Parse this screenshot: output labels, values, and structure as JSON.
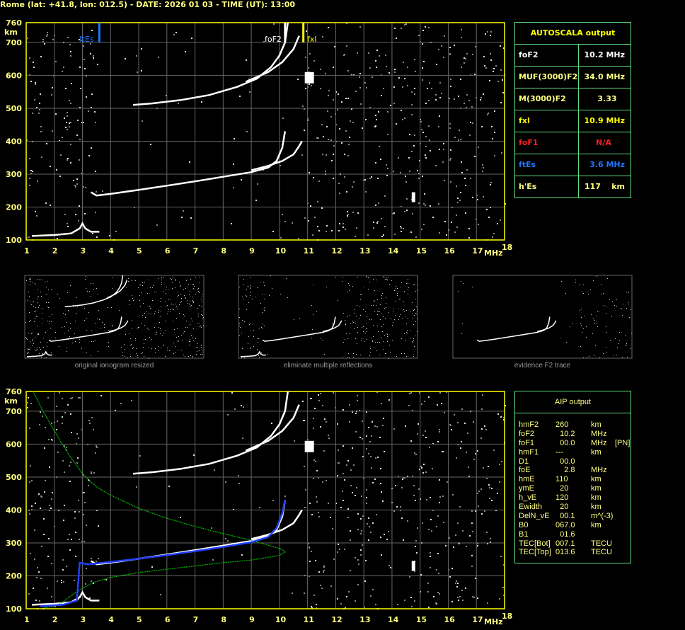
{
  "title": "Rome (lat: +41.8, lon: 012.5) - DATE: 2026 01 03 - TIME (UT): 13:00",
  "colors": {
    "text": "#ffff80",
    "grid": "#666666",
    "frame": "#ffff00",
    "table_border": "#60e080",
    "ftEs": "#1e78ff",
    "foF1": "#ff2020",
    "trace": "#ffffff",
    "profile": "#00d000",
    "aip_trace": "#2040ff"
  },
  "axis": {
    "y_unit": "km",
    "x_unit": "MHz",
    "y_ticks": [
      "760",
      "700",
      "600",
      "500",
      "400",
      "300",
      "200",
      "100"
    ],
    "x_ticks": [
      "1",
      "2",
      "3",
      "4",
      "5",
      "6",
      "7",
      "8",
      "9",
      "10",
      "11",
      "12",
      "13",
      "14",
      "15",
      "16",
      "17",
      "18"
    ]
  },
  "markers": {
    "ftEs": "ftEs",
    "foF2": "foF2",
    "fxI": "fxI"
  },
  "autoscala": {
    "title": "AUTOSCALA output",
    "rows": [
      {
        "key": "foF2",
        "value": "10.2 MHz",
        "color": "#ffffff"
      },
      {
        "key": "MUF(3000)F2",
        "value": "34.0 MHz",
        "color": "#ffff80"
      },
      {
        "key": "M(3000)F2",
        "value": "3.33   ",
        "color": "#ffff80"
      },
      {
        "key": "fxI",
        "value": "10.9 MHz",
        "color": "#ffff00"
      },
      {
        "key": "foF1",
        "value": "N/A     ",
        "color": "#ff2020"
      },
      {
        "key": "ftEs",
        "value": "3.6 MHz",
        "color": "#1e78ff"
      },
      {
        "key": "h'Es",
        "value": "117    km",
        "color": "#ffff80"
      }
    ]
  },
  "thumbnails": [
    {
      "caption": "original ionogram resized"
    },
    {
      "caption": "eliminate multiple reflections"
    },
    {
      "caption": "evidence F2 trace"
    }
  ],
  "aip": {
    "title": "AIP output",
    "rows": [
      [
        "hmF2",
        "260",
        "km",
        ""
      ],
      [
        "foF2",
        "  10.2",
        "MHz",
        ""
      ],
      [
        "foF1",
        "  00.0",
        "MHz",
        "[PN]"
      ],
      [
        "hmF1",
        "---",
        "km",
        ""
      ],
      [
        "D1",
        "  00.0",
        "",
        ""
      ],
      [
        "foE",
        "    2.8",
        "MHz",
        ""
      ],
      [
        "hmE",
        "110",
        "km",
        ""
      ],
      [
        "ymE",
        "  20",
        "km",
        ""
      ],
      [
        "h_vE",
        "120",
        "km",
        ""
      ],
      [
        "Ewidth",
        "  20",
        "km",
        ""
      ],
      [
        "DelN_vE",
        "  00.1",
        "m^(-3)",
        ""
      ],
      [
        "B0",
        "067.0",
        "km",
        ""
      ],
      [
        "B1",
        "  01.6",
        "",
        ""
      ],
      [
        "TEC[Bot]",
        "007.1",
        "TECU",
        ""
      ],
      [
        "TEC[Top]",
        "013.6",
        "TECU",
        ""
      ]
    ]
  },
  "chart_data": [
    {
      "type": "scatter",
      "name_ref": "ionogram",
      "xlabel": "MHz",
      "ylabel": "km",
      "xlim": [
        1,
        18
      ],
      "ylim": [
        100,
        760
      ],
      "grid": true,
      "markers": {
        "ftEs_MHz": 3.6,
        "foF2_MHz": 10.2,
        "fxI_MHz": 10.9
      },
      "traces": {
        "Es": [
          [
            1.2,
            112
          ],
          [
            2,
            115
          ],
          [
            2.6,
            120
          ],
          [
            2.9,
            135
          ],
          [
            3.0,
            150
          ],
          [
            3.1,
            135
          ],
          [
            3.3,
            125
          ],
          [
            3.6,
            125
          ]
        ],
        "F2_o": [
          [
            3.3,
            245
          ],
          [
            3.5,
            235
          ],
          [
            4,
            240
          ],
          [
            5,
            252
          ],
          [
            6,
            265
          ],
          [
            7,
            278
          ],
          [
            8,
            292
          ],
          [
            9,
            306
          ],
          [
            9.6,
            320
          ],
          [
            9.9,
            340
          ],
          [
            10.1,
            380
          ],
          [
            10.2,
            430
          ]
        ],
        "F2_x": [
          [
            9,
            312
          ],
          [
            9.6,
            325
          ],
          [
            10.1,
            340
          ],
          [
            10.5,
            360
          ],
          [
            10.7,
            385
          ],
          [
            10.8,
            400
          ]
        ],
        "F2_2hop": [
          [
            4.8,
            510
          ],
          [
            5.5,
            515
          ],
          [
            6.5,
            525
          ],
          [
            7.5,
            540
          ],
          [
            8.5,
            565
          ],
          [
            9.2,
            590
          ],
          [
            9.7,
            625
          ],
          [
            10.0,
            660
          ],
          [
            10.2,
            700
          ],
          [
            10.3,
            760
          ]
        ],
        "F2_2hop_x": [
          [
            8.8,
            580
          ],
          [
            9.6,
            610
          ],
          [
            10.1,
            640
          ],
          [
            10.5,
            680
          ],
          [
            10.7,
            720
          ]
        ]
      }
    },
    {
      "type": "line",
      "name_ref": "aip",
      "xlabel": "MHz",
      "ylabel": "km",
      "xlim": [
        1,
        18
      ],
      "ylim": [
        100,
        760
      ],
      "grid": true,
      "profile": [
        [
          1.25,
          760
        ],
        [
          1.6,
          700
        ],
        [
          2,
          640
        ],
        [
          2.5,
          570
        ],
        [
          3,
          510
        ],
        [
          3.5,
          470
        ],
        [
          4,
          445
        ],
        [
          5,
          405
        ],
        [
          6,
          375
        ],
        [
          7,
          350
        ],
        [
          8,
          328
        ],
        [
          9,
          308
        ],
        [
          9.6,
          293
        ],
        [
          10.1,
          280
        ],
        [
          10.2,
          272
        ],
        [
          10,
          262
        ],
        [
          9,
          248
        ],
        [
          8,
          240
        ],
        [
          7,
          230
        ],
        [
          6,
          220
        ],
        [
          5,
          210
        ],
        [
          4,
          195
        ],
        [
          3.4,
          180
        ],
        [
          3,
          162
        ],
        [
          2.6,
          140
        ],
        [
          2.3,
          120
        ],
        [
          2,
          108
        ],
        [
          1.6,
          102
        ]
      ],
      "fit": [
        [
          1.5,
          108
        ],
        [
          2.3,
          112
        ],
        [
          2.8,
          125
        ],
        [
          2.9,
          240
        ],
        [
          3.2,
          235
        ],
        [
          4,
          242
        ],
        [
          5,
          252
        ],
        [
          6,
          263
        ],
        [
          7,
          275
        ],
        [
          8,
          288
        ],
        [
          9,
          302
        ],
        [
          9.6,
          318
        ],
        [
          9.9,
          345
        ],
        [
          10.1,
          390
        ],
        [
          10.2,
          430
        ]
      ]
    }
  ]
}
